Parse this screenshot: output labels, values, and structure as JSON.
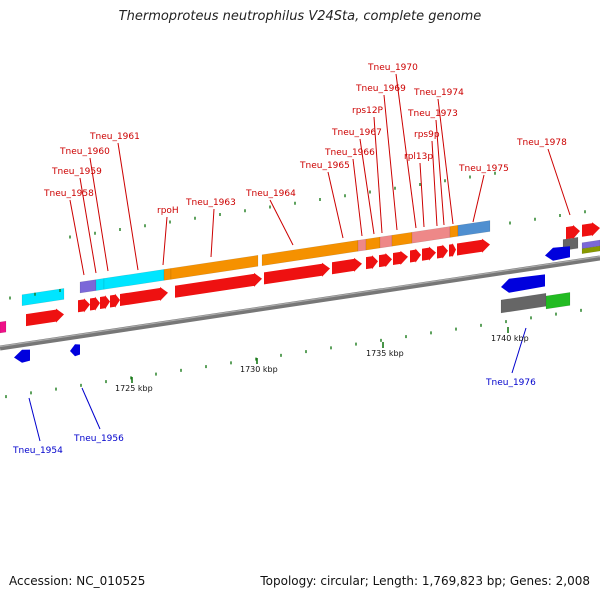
{
  "title": "Thermoproteus neutrophilus V24Sta, complete genome",
  "footer": {
    "accession": "Accession: NC_010525",
    "topology": "Topology: circular; Length: 1,769,823 bp; Genes: 2,008"
  },
  "colors": {
    "forward_label": "#cc0000",
    "reverse_label": "#0000cc",
    "cds": "#ee1111",
    "orange": "#f59100",
    "cyan": "#00e5ff",
    "pink": "#ee8888",
    "steel": "#4f8fd0",
    "blue": "#0000dd",
    "green": "#22bb22",
    "gray": "#666666",
    "tick": "#1a7a1a"
  },
  "scale_labels": [
    "1725 kbp",
    "1730 kbp",
    "1735 kbp",
    "1740 kbp"
  ],
  "forward_genes": [
    "Tneu_1958",
    "Tneu_1959",
    "Tneu_1960",
    "Tneu_1961",
    "rpoH",
    "Tneu_1963",
    "Tneu_1964",
    "Tneu_1965",
    "Tneu_1966",
    "Tneu_1967",
    "rps12P",
    "Tneu_1969",
    "Tneu_1970",
    "rpl13p",
    "rps9p",
    "Tneu_1973",
    "Tneu_1974",
    "Tneu_1975",
    "Tneu_1978"
  ],
  "reverse_genes": [
    "Tneu_1954",
    "Tneu_1956",
    "Tneu_1976"
  ]
}
